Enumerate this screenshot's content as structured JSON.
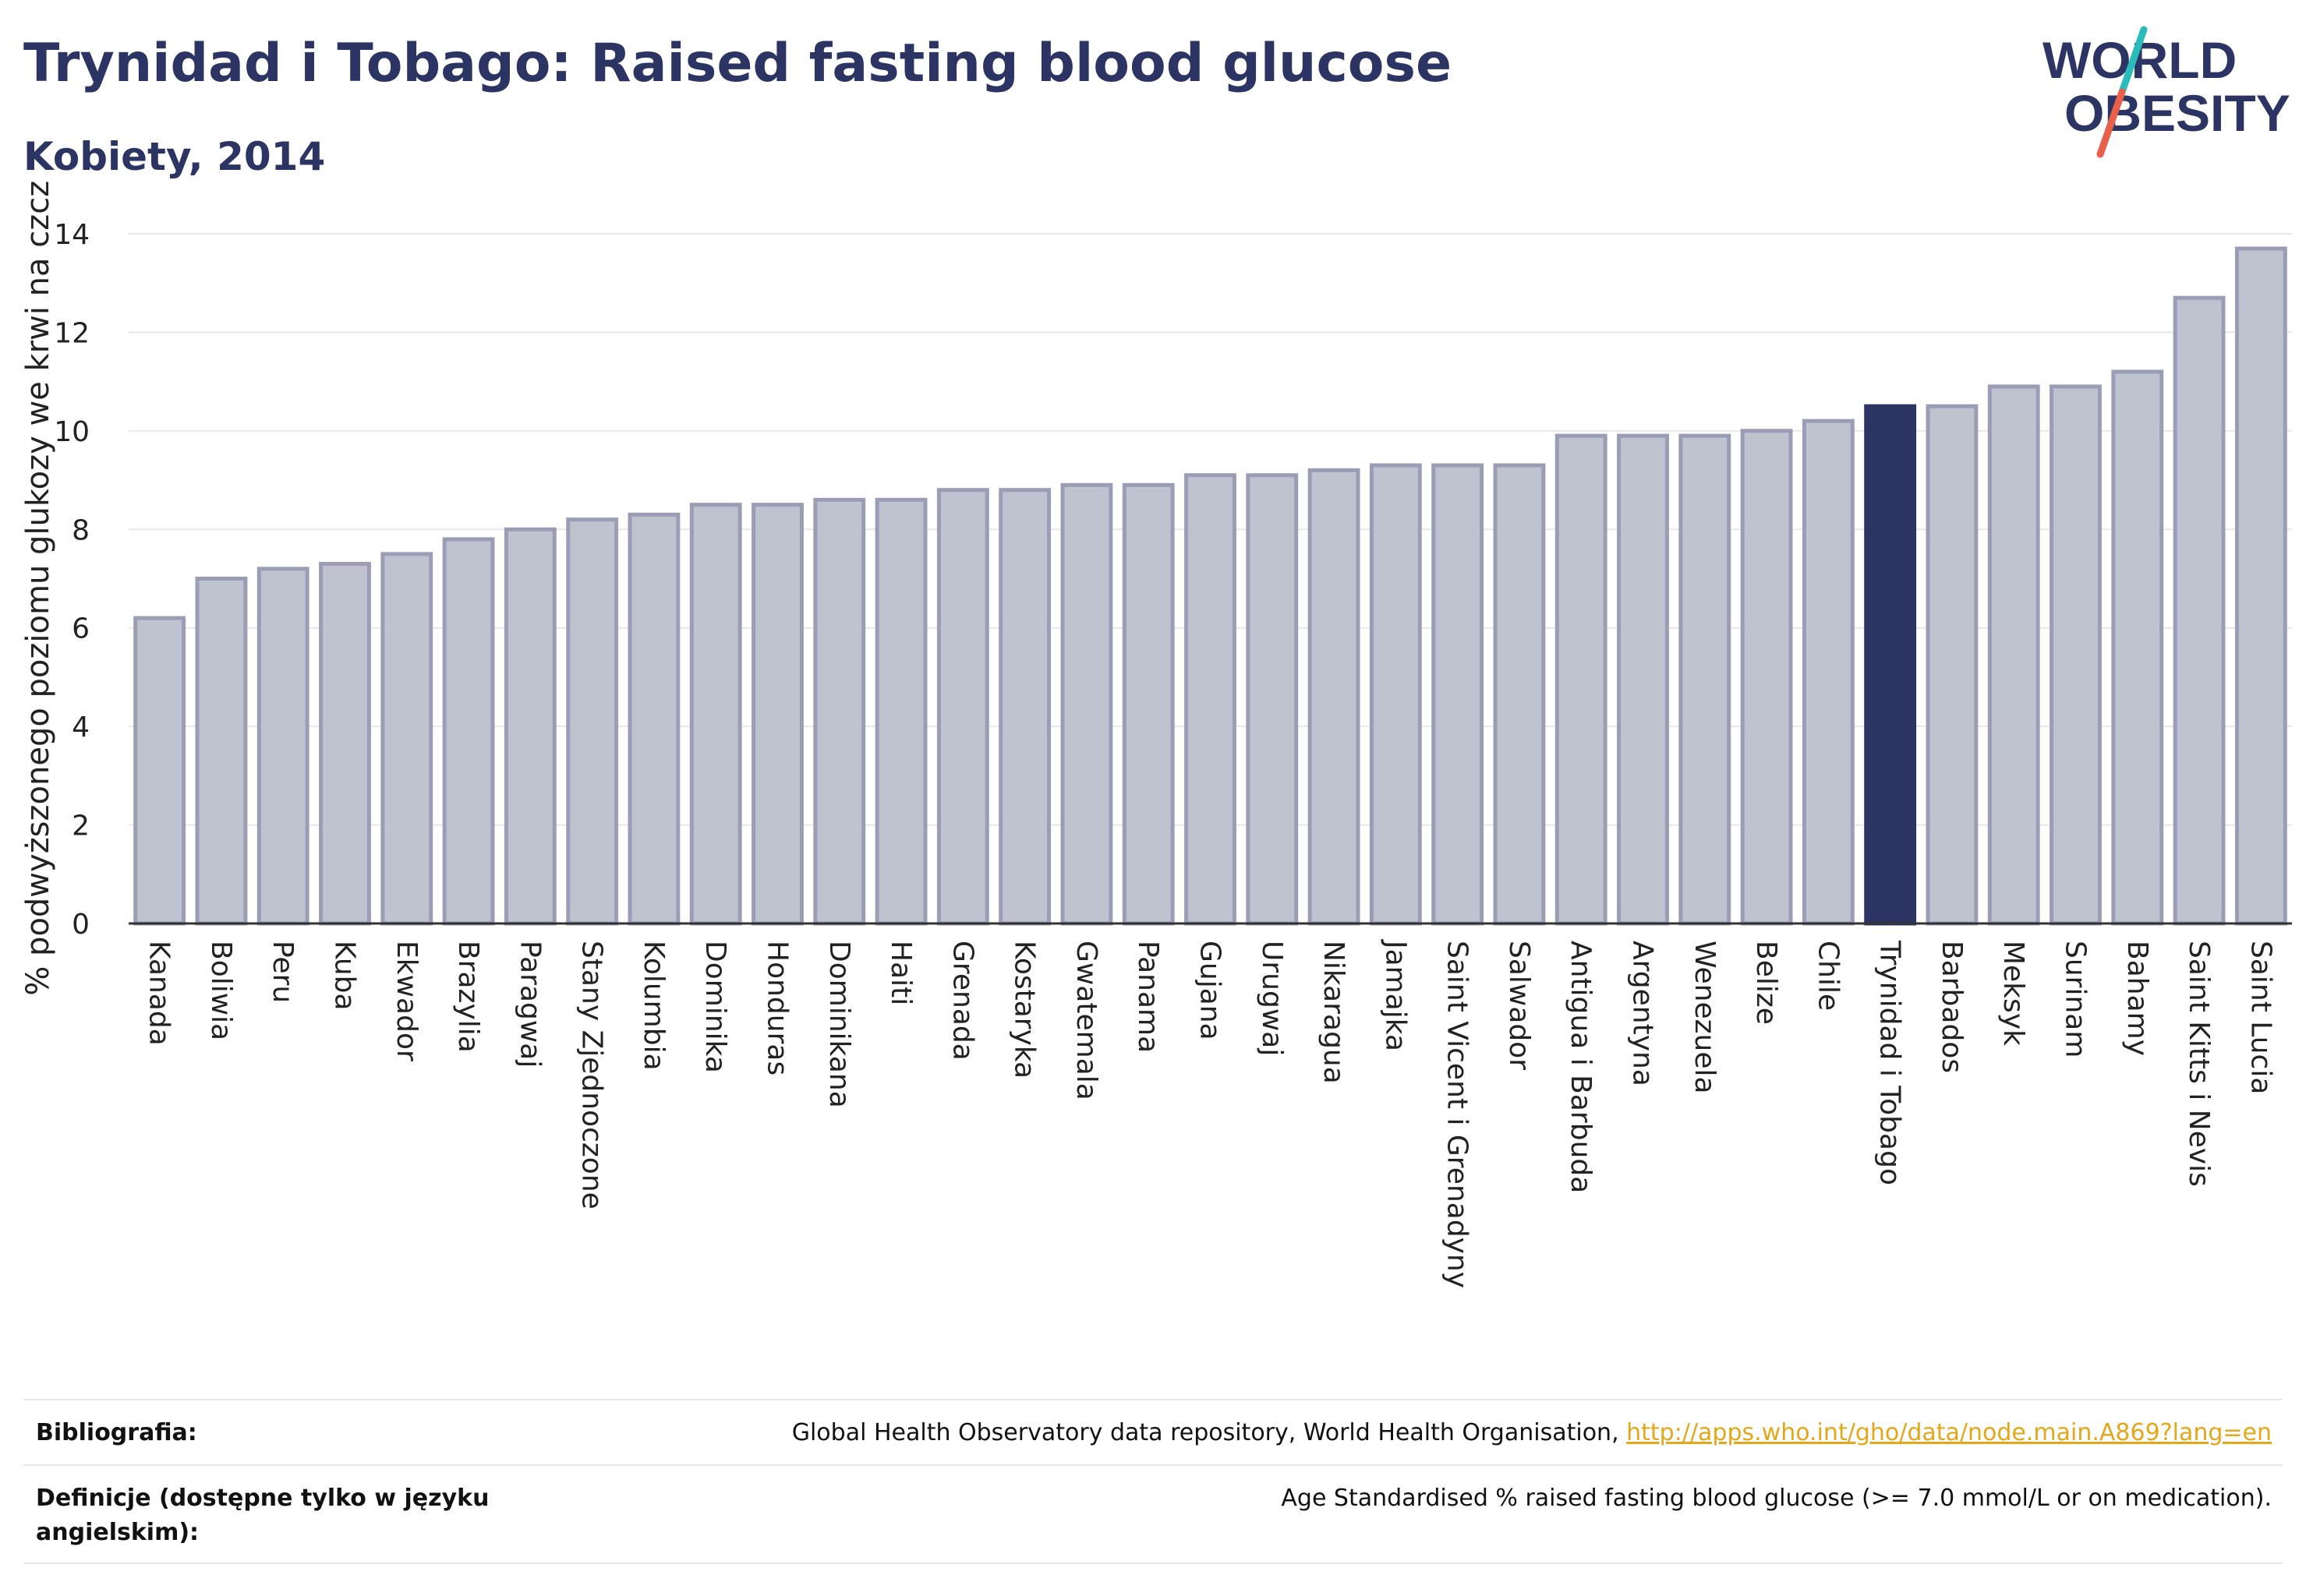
{
  "header": {
    "title": "Trynidad i Tobago: Raised fasting blood glucose",
    "subtitle": "Kobiety, 2014"
  },
  "logo": {
    "line1": "WORLD",
    "line2": "OBESITY",
    "colors": {
      "text": "#2b3462",
      "slash_teal": "#2bbbbb",
      "slash_red": "#e8604c"
    }
  },
  "colors": {
    "bar": "#bfc2cf",
    "bar_stroke": "#9a9db5",
    "highlight": "#2b3462",
    "grid": "#e8e8e8"
  },
  "chart_data": {
    "type": "bar",
    "ylabel": "% podwyższonego poziomu glukozy we krwi na czczo",
    "ylim": [
      0,
      14
    ],
    "yticks": [
      0,
      2,
      4,
      6,
      8,
      10,
      12,
      14
    ],
    "grid": true,
    "highlight": "Trynidad i Tobago",
    "categories": [
      "Kanada",
      "Boliwia",
      "Peru",
      "Kuba",
      "Ekwador",
      "Brazylia",
      "Paragwaj",
      "Stany Zjednoczone",
      "Kolumbia",
      "Dominika",
      "Honduras",
      "Dominikana",
      "Haiti",
      "Grenada",
      "Kostaryka",
      "Gwatemala",
      "Panama",
      "Gujana",
      "Urugwaj",
      "Nikaragua",
      "Jamajka",
      "Saint Vicent i Grenadyny",
      "Salwador",
      "Antigua i Barbuda",
      "Argentyna",
      "Wenezuela",
      "Belize",
      "Chile",
      "Trynidad i Tobago",
      "Barbados",
      "Meksyk",
      "Surinam",
      "Bahamy",
      "Saint Kitts i Nevis",
      "Saint Lucia"
    ],
    "values": [
      6.2,
      7.0,
      7.2,
      7.3,
      7.5,
      7.8,
      8.0,
      8.2,
      8.3,
      8.5,
      8.5,
      8.6,
      8.6,
      8.8,
      8.8,
      8.9,
      8.9,
      9.1,
      9.1,
      9.2,
      9.3,
      9.3,
      9.3,
      9.9,
      9.9,
      9.9,
      10.0,
      10.2,
      10.5,
      10.5,
      10.9,
      10.9,
      11.2,
      12.7,
      13.7
    ]
  },
  "footer": {
    "bibliography_label": "Bibliografia:",
    "bibliography_text": "Global Health Observatory data repository, World Health Organisation, ",
    "bibliography_link": "http://apps.who.int/gho/data/node.main.A869?lang=en",
    "definitions_label": "Definicje (dostępne tylko w języku angielskim):",
    "definitions_text": "Age Standardised % raised fasting blood glucose (>= 7.0 mmol/L or on medication)."
  }
}
